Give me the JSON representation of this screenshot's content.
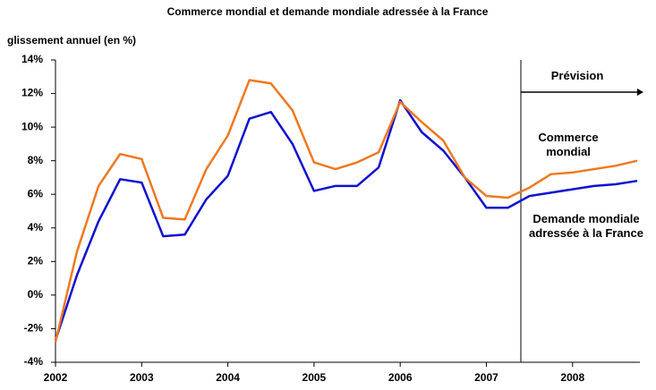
{
  "chart_data": {
    "type": "line",
    "title": "Commerce mondial et demande mondiale adressée à la France",
    "y_label": "glissement annuel (en %)",
    "forecast_label": "Prévision",
    "forecast_start": 2007.4,
    "x": [
      2002,
      2002.25,
      2002.5,
      2002.75,
      2003,
      2003.25,
      2003.5,
      2003.75,
      2004,
      2004.25,
      2004.5,
      2004.75,
      2005,
      2005.25,
      2005.5,
      2005.75,
      2006,
      2006.25,
      2006.5,
      2006.75,
      2007,
      2007.25,
      2007.5,
      2007.75,
      2008,
      2008.25,
      2008.5,
      2008.75
    ],
    "series": [
      {
        "name": "Commerce mondial",
        "color": "#f07820",
        "values": [
          -2.8,
          2.6,
          6.5,
          8.4,
          8.1,
          4.6,
          4.5,
          7.5,
          9.5,
          12.8,
          12.6,
          11.0,
          7.9,
          7.5,
          7.9,
          8.5,
          11.5,
          10.3,
          9.2,
          7.0,
          5.9,
          5.8,
          6.4,
          7.2,
          7.3,
          7.5,
          7.7,
          8.0
        ]
      },
      {
        "name": "Demande mondiale adressée à la France",
        "color": "#1010d0",
        "values": [
          -2.7,
          1.2,
          4.4,
          6.9,
          6.7,
          3.5,
          3.6,
          5.7,
          7.1,
          10.5,
          10.9,
          9.0,
          6.2,
          6.5,
          6.5,
          7.6,
          11.6,
          9.7,
          8.6,
          7.0,
          5.2,
          5.2,
          5.9,
          6.1,
          6.3,
          6.5,
          6.6,
          6.8
        ]
      }
    ],
    "xlim": [
      2002,
      2008.75
    ],
    "xticks": [
      2002,
      2003,
      2004,
      2005,
      2006,
      2007,
      2008
    ],
    "ylim": [
      -4,
      14
    ],
    "yticks": [
      {
        "value": -4,
        "label": "-4%"
      },
      {
        "value": -2,
        "label": "-2%"
      },
      {
        "value": 0,
        "label": "0%"
      },
      {
        "value": 2,
        "label": "2%"
      },
      {
        "value": 4,
        "label": "4%"
      },
      {
        "value": 6,
        "label": "6%"
      },
      {
        "value": 8,
        "label": "8%"
      },
      {
        "value": 10,
        "label": "10%"
      },
      {
        "value": 12,
        "label": "12%"
      },
      {
        "value": 14,
        "label": "14%"
      }
    ],
    "grid": false
  }
}
